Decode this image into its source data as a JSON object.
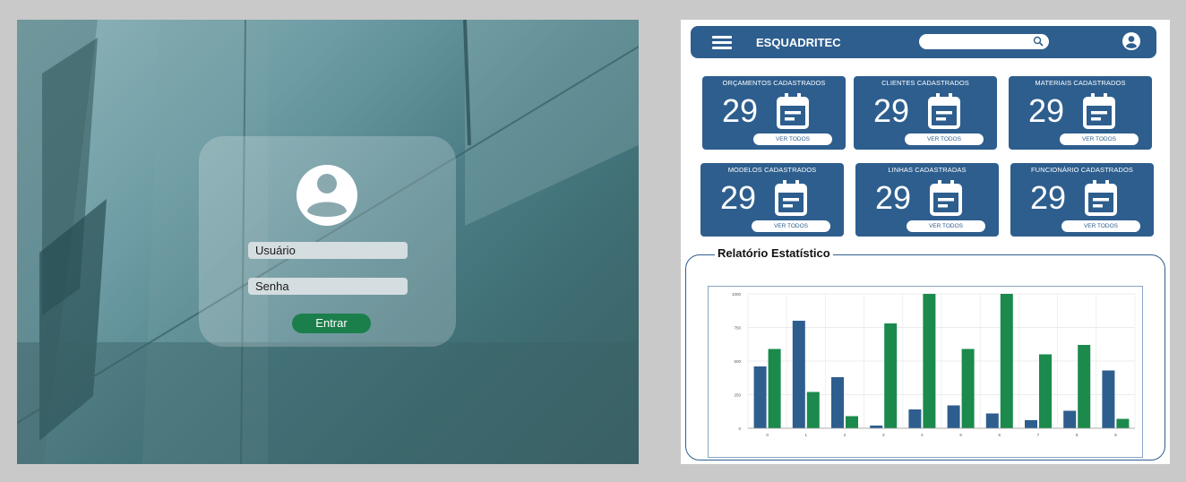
{
  "login": {
    "username_placeholder": "Usuário",
    "password_placeholder": "Senha",
    "submit_label": "Entrar"
  },
  "dashboard": {
    "app_title": "ESQUADRITEC",
    "search": {
      "placeholder": ""
    },
    "cards": [
      {
        "title": "ORÇAMENTOS CADASTRADOS",
        "value": "29",
        "button": "VER TODOS"
      },
      {
        "title": "CLIENTES CADASTRADOS",
        "value": "29",
        "button": "VER TODOS"
      },
      {
        "title": "MATERIAIS CADASTRADOS",
        "value": "29",
        "button": "VER TODOS"
      },
      {
        "title": "MODELOS CADASTRADOS",
        "value": "29",
        "button": "VER TODOS"
      },
      {
        "title": "LINHAS CADASTRADAS",
        "value": "29",
        "button": "VER TODOS"
      },
      {
        "title": "FUNCIONÁRIO CADASTRADOS",
        "value": "29",
        "button": "VER TODOS"
      }
    ],
    "report_title": "Relatório Estatístico"
  },
  "colors": {
    "primary_blue": "#2d5e8e",
    "accent_green": "#1b7f4c",
    "card_text": "#ffffff"
  },
  "chart_data": {
    "type": "bar",
    "categories": [
      "0",
      "1",
      "2",
      "3",
      "4",
      "5",
      "6",
      "7",
      "8",
      "9"
    ],
    "series": [
      {
        "values": [
          460,
          800,
          380,
          20,
          140,
          170,
          110,
          60,
          130,
          430
        ],
        "color": "#2d5e8e"
      },
      {
        "values": [
          590,
          270,
          90,
          780,
          1000,
          590,
          1000,
          550,
          620,
          70
        ],
        "color": "#1b8a4c"
      }
    ],
    "ylim": [
      0,
      1000
    ],
    "yticks": [
      "0",
      "250",
      "500",
      "750",
      "1000"
    ],
    "grid": true,
    "legend": "none"
  }
}
